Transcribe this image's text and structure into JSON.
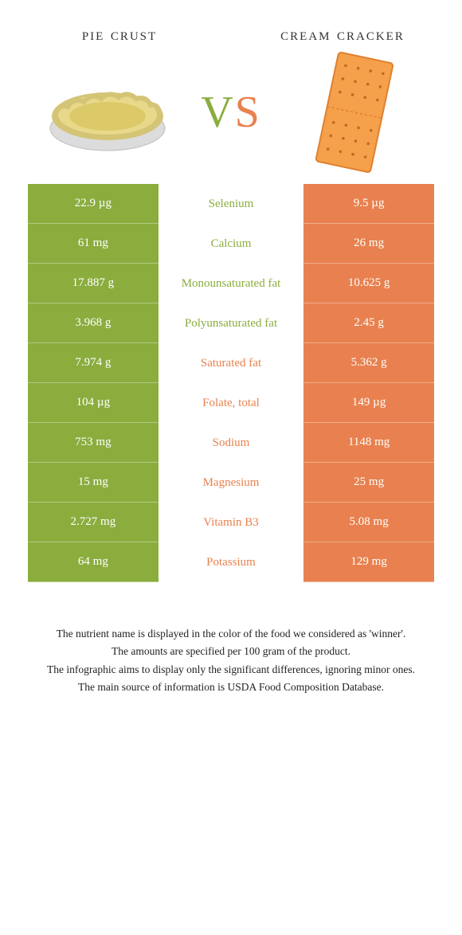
{
  "header": {
    "left_title": "pie crust",
    "right_title": "cream cracker",
    "vs_v": "V",
    "vs_s": "S"
  },
  "colors": {
    "left": "#8aad3e",
    "right": "#e8814f",
    "pie_crust_fill": "#e8d98a",
    "pie_crust_edge": "#d4c476",
    "pie_crust_foil": "#dcdcdc",
    "cracker_fill": "#f5a04a",
    "cracker_edge": "#e08030",
    "cracker_hole": "#c26820"
  },
  "rows": [
    {
      "left": "22.9 µg",
      "label": "Selenium",
      "right": "9.5 µg",
      "winner": "left"
    },
    {
      "left": "61 mg",
      "label": "Calcium",
      "right": "26 mg",
      "winner": "left"
    },
    {
      "left": "17.887 g",
      "label": "Monounsaturated fat",
      "right": "10.625 g",
      "winner": "left"
    },
    {
      "left": "3.968 g",
      "label": "Polyunsaturated fat",
      "right": "2.45 g",
      "winner": "left"
    },
    {
      "left": "7.974 g",
      "label": "Saturated fat",
      "right": "5.362 g",
      "winner": "right"
    },
    {
      "left": "104 µg",
      "label": "Folate, total",
      "right": "149 µg",
      "winner": "right"
    },
    {
      "left": "753 mg",
      "label": "Sodium",
      "right": "1148 mg",
      "winner": "right"
    },
    {
      "left": "15 mg",
      "label": "Magnesium",
      "right": "25 mg",
      "winner": "right"
    },
    {
      "left": "2.727 mg",
      "label": "Vitamin B3",
      "right": "5.08 mg",
      "winner": "right"
    },
    {
      "left": "64 mg",
      "label": "Potassium",
      "right": "129 mg",
      "winner": "right"
    }
  ],
  "footnotes": [
    "The nutrient name is displayed in the color of the food we considered as 'winner'.",
    "The amounts are specified per 100 gram of the product.",
    "The infographic aims to display only the significant differences, ignoring minor ones.",
    "The main source of information is USDA Food Composition Database."
  ]
}
